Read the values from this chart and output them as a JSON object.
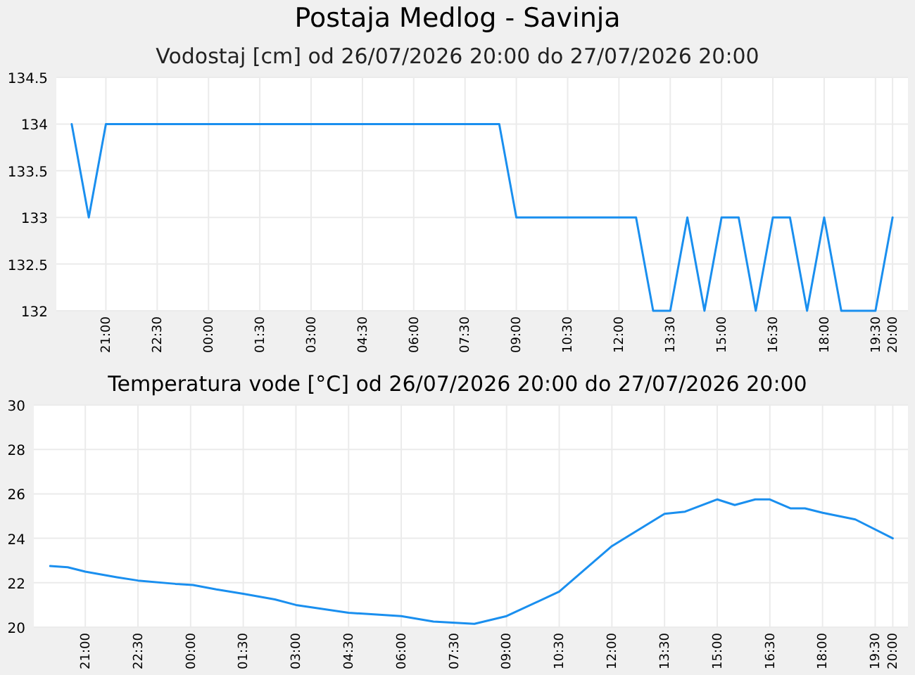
{
  "chart_data": [
    {
      "type": "line",
      "title": "Postaja Medlog - Savinja",
      "subtitle": "Vodostaj [cm] od 26/07/2026 20:00 do 27/07/2026 20:00",
      "grid": true,
      "xlim": [
        "2026-07-26T19:33",
        "2026-07-27T20:27"
      ],
      "ylim": [
        132,
        134.5
      ],
      "yticks": [
        132,
        132.5,
        133,
        133.5,
        134,
        134.5
      ],
      "xticks": [
        {
          "value": "2026-07-26T21:00",
          "label": "21:00"
        },
        {
          "value": "2026-07-26T22:30",
          "label": "22:30"
        },
        {
          "value": "2026-07-27T00:00",
          "label": "00:00"
        },
        {
          "value": "2026-07-27T01:30",
          "label": "01:30"
        },
        {
          "value": "2026-07-27T03:00",
          "label": "03:00"
        },
        {
          "value": "2026-07-27T04:30",
          "label": "04:30"
        },
        {
          "value": "2026-07-27T06:00",
          "label": "06:00"
        },
        {
          "value": "2026-07-27T07:30",
          "label": "07:30"
        },
        {
          "value": "2026-07-27T09:00",
          "label": "09:00"
        },
        {
          "value": "2026-07-27T10:30",
          "label": "10:30"
        },
        {
          "value": "2026-07-27T12:00",
          "label": "12:00"
        },
        {
          "value": "2026-07-27T13:30",
          "label": "13:30"
        },
        {
          "value": "2026-07-27T15:00",
          "label": "15:00"
        },
        {
          "value": "2026-07-27T16:30",
          "label": "16:30"
        },
        {
          "value": "2026-07-27T18:00",
          "label": "18:00"
        },
        {
          "value": "2026-07-27T19:30",
          "label": "19:30"
        },
        {
          "value": "2026-07-27T20:00",
          "label": "20:00"
        }
      ],
      "x": [
        "2026-07-26T20:00",
        "2026-07-26T20:30",
        "2026-07-26T21:00",
        "2026-07-27T08:30",
        "2026-07-27T09:00",
        "2026-07-27T12:30",
        "2026-07-27T13:00",
        "2026-07-27T13:30",
        "2026-07-27T14:00",
        "2026-07-27T14:30",
        "2026-07-27T15:00",
        "2026-07-27T15:30",
        "2026-07-27T16:00",
        "2026-07-27T16:30",
        "2026-07-27T17:00",
        "2026-07-27T17:30",
        "2026-07-27T18:00",
        "2026-07-27T18:30",
        "2026-07-27T19:30",
        "2026-07-27T20:00"
      ],
      "series": [
        {
          "color": "#1a8fef",
          "values": [
            134,
            133,
            134,
            134,
            133,
            133,
            132,
            132,
            133,
            132,
            133,
            133,
            132,
            133,
            133,
            132,
            133,
            132,
            132,
            133
          ]
        }
      ]
    },
    {
      "type": "line",
      "title": "Temperatura vode [°C] od 26/07/2026 20:00 do 27/07/2026 20:00",
      "grid": true,
      "xlim": [
        "2026-07-26T19:32",
        "2026-07-27T20:26"
      ],
      "ylim": [
        20,
        30
      ],
      "yticks": [
        20,
        22,
        24,
        26,
        28,
        30
      ],
      "xticks": [
        {
          "value": "2026-07-26T21:00",
          "label": "21:00"
        },
        {
          "value": "2026-07-26T22:30",
          "label": "22:30"
        },
        {
          "value": "2026-07-27T00:00",
          "label": "00:00"
        },
        {
          "value": "2026-07-27T01:30",
          "label": "01:30"
        },
        {
          "value": "2026-07-27T03:00",
          "label": "03:00"
        },
        {
          "value": "2026-07-27T04:30",
          "label": "04:30"
        },
        {
          "value": "2026-07-27T06:00",
          "label": "06:00"
        },
        {
          "value": "2026-07-27T07:30",
          "label": "07:30"
        },
        {
          "value": "2026-07-27T09:00",
          "label": "09:00"
        },
        {
          "value": "2026-07-27T10:30",
          "label": "10:30"
        },
        {
          "value": "2026-07-27T12:00",
          "label": "12:00"
        },
        {
          "value": "2026-07-27T13:30",
          "label": "13:30"
        },
        {
          "value": "2026-07-27T15:00",
          "label": "15:00"
        },
        {
          "value": "2026-07-27T16:30",
          "label": "16:30"
        },
        {
          "value": "2026-07-27T18:00",
          "label": "18:00"
        },
        {
          "value": "2026-07-27T19:30",
          "label": "19:30"
        },
        {
          "value": "2026-07-27T20:00",
          "label": "20:00"
        }
      ],
      "x": [
        "2026-07-26T20:00",
        "2026-07-26T20:30",
        "2026-07-26T21:00",
        "2026-07-26T21:54",
        "2026-07-26T22:30",
        "2026-07-26T23:34",
        "2026-07-27T00:04",
        "2026-07-27T00:44",
        "2026-07-27T01:30",
        "2026-07-27T02:24",
        "2026-07-27T03:00",
        "2026-07-27T04:30",
        "2026-07-27T06:00",
        "2026-07-27T06:55",
        "2026-07-27T08:05",
        "2026-07-27T09:00",
        "2026-07-27T10:30",
        "2026-07-27T12:00",
        "2026-07-27T13:30",
        "2026-07-27T14:05",
        "2026-07-27T15:00",
        "2026-07-27T15:30",
        "2026-07-27T16:05",
        "2026-07-27T16:30",
        "2026-07-27T17:05",
        "2026-07-27T17:30",
        "2026-07-27T18:00",
        "2026-07-27T18:56",
        "2026-07-27T20:00"
      ],
      "series": [
        {
          "color": "#1a8fef",
          "values": [
            22.75,
            22.7,
            22.5,
            22.25,
            22.1,
            21.95,
            21.9,
            21.7,
            21.5,
            21.25,
            21.0,
            20.65,
            20.5,
            20.25,
            20.15,
            20.5,
            21.6,
            23.65,
            25.1,
            25.2,
            25.75,
            25.5,
            25.75,
            25.75,
            25.35,
            25.35,
            25.15,
            24.85,
            24.0
          ]
        }
      ]
    }
  ]
}
